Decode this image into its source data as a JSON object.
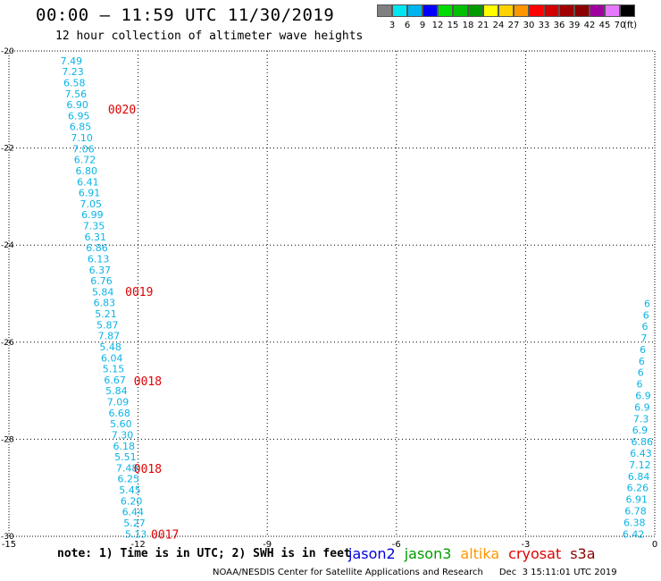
{
  "title": "00:00 — 11:59 UTC 11/30/2019",
  "subtitle": "12 hour collection of altimeter wave heights",
  "legend": {
    "colors": [
      "#808080",
      "#00e6f0",
      "#00b4f0",
      "#0000ff",
      "#00dc00",
      "#00c000",
      "#009b00",
      "#ffff00",
      "#ffd200",
      "#ff9600",
      "#ff0000",
      "#d20000",
      "#a00000",
      "#8c0000",
      "#a000a0",
      "#e678ff",
      "#000000"
    ],
    "labels": [
      "3",
      "6",
      "9",
      "12",
      "15",
      "18",
      "21",
      "24",
      "27",
      "30",
      "33",
      "36",
      "39",
      "42",
      "45",
      "70"
    ],
    "unit": "(ft)"
  },
  "axes": {
    "x_ticks": [
      "-15",
      "-12",
      "-9",
      "-6",
      "-3",
      "0"
    ],
    "y_ticks": [
      "-20",
      "-22",
      "-24",
      "-26",
      "-28",
      "-30"
    ],
    "x_range": [
      -15,
      0
    ],
    "y_range": [
      -30,
      -20
    ]
  },
  "track_left": {
    "values": [
      "7.49",
      "7.23",
      "6.58",
      "7.56",
      "6.90",
      "6.95",
      "6.85",
      "7.10",
      "7.06",
      "6.72",
      "6.80",
      "6.41",
      "6.91",
      "7.05",
      "6.99",
      "7.35",
      "6.31",
      "6.86",
      "6.13",
      "6.37",
      "6.76",
      "5.84",
      "6.83",
      "5.21",
      "5.87",
      "7.87",
      "5.48",
      "6.04",
      "5.15",
      "6.67",
      "5.84",
      "7.09",
      "6.68",
      "5.60",
      "7.30",
      "6.18",
      "5.51",
      "7.48",
      "6.25",
      "5.45",
      "6.20",
      "6.44",
      "5.27",
      "5.13"
    ],
    "lon_start": -13.55,
    "lon_end": -12.05,
    "lat_start": -20.2,
    "lat_end": -29.95
  },
  "track_right": {
    "values": [
      "6",
      "6",
      "6",
      "7",
      "6",
      "6",
      "6",
      "6",
      "6.9",
      "6.9",
      "7.3",
      "6.9",
      "6.86",
      "6.43",
      "7.12",
      "6.84",
      "6.26",
      "6.91",
      "6.78",
      "6.38",
      "6.42"
    ],
    "lon_start": -0.25,
    "lon_end": -0.75,
    "lat_start": -25.2,
    "lat_end": -29.95
  },
  "pass_times": [
    {
      "label": "0020",
      "lon": -12.7,
      "lat": -21.2
    },
    {
      "label": "0019",
      "lon": -12.3,
      "lat": -24.95
    },
    {
      "label": "0018",
      "lon": -12.1,
      "lat": -26.8
    },
    {
      "label": "0018",
      "lon": -12.1,
      "lat": -28.6
    },
    {
      "label": "0017",
      "lon": -11.7,
      "lat": -29.95
    }
  ],
  "note": "note: 1) Time is in UTC; 2) SWH is in feet",
  "satellites": [
    {
      "name": "jason2",
      "color": "#0000dc"
    },
    {
      "name": "jason3",
      "color": "#009b00"
    },
    {
      "name": "altika",
      "color": "#ff9600"
    },
    {
      "name": "cryosat",
      "color": "#e00000"
    },
    {
      "name": "s3a",
      "color": "#8c0000"
    }
  ],
  "footer": {
    "org": "NOAA/NESDIS Center for Satellite Applications and Research",
    "timestamp": "Dec  3 15:11:01 UTC 2019"
  }
}
